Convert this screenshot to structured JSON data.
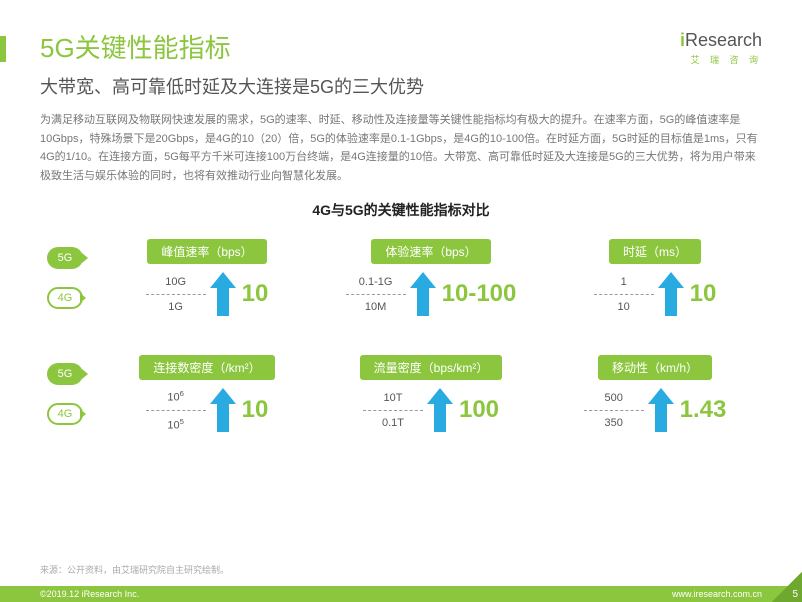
{
  "brand": {
    "name_i": "i",
    "name_rest": "Research",
    "sub": "艾 瑞 咨 询"
  },
  "title": "5G关键性能指标",
  "subtitle": "大带宽、高可靠低时延及大连接是5G的三大优势",
  "body": "为满足移动互联网及物联网快速发展的需求，5G的速率、时延、移动性及连接量等关键性能指标均有极大的提升。在速率方面，5G的峰值速率是10Gbps，特殊场景下是20Gbps，是4G的10（20）倍，5G的体验速率是0.1-1Gbps，是4G的10-100倍。在时延方面，5G时延的目标值是1ms，只有4G的1/10。在连接方面，5G每平方千米可连接100万台终端，是4G连接量的10倍。大带宽、高可靠低时延及大连接是5G的三大优势，将为用户带来极致生活与娱乐体验的同时，也将有效推动行业向智慧化发展。",
  "chart_title": "4G与5G的关键性能指标对比",
  "labels": {
    "g5": "5G",
    "g4": "4G"
  },
  "colors": {
    "accent": "#8cc63f",
    "arrow": "#29abe2",
    "text_muted": "#777"
  },
  "arrow_svg": {
    "width": 26,
    "height": 44
  },
  "metrics": [
    {
      "header": "峰值速率（bps）",
      "v5": "10G",
      "v4": "1G",
      "mult": "10"
    },
    {
      "header": "体验速率（bps）",
      "v5": "0.1-1G",
      "v4": "10M",
      "mult": "10-100"
    },
    {
      "header": "时延（ms）",
      "v5": "1",
      "v4": "10",
      "mult": "10"
    },
    {
      "header": "连接数密度（/km²）",
      "v5_html": "10<sup>6</sup>",
      "v4_html": "10<sup>5</sup>",
      "mult": "10"
    },
    {
      "header": "流量密度（bps/km²）",
      "v5": "10T",
      "v4": "0.1T",
      "mult": "100"
    },
    {
      "header": "移动性（km/h）",
      "v5": "500",
      "v4": "350",
      "mult": "1.43"
    }
  ],
  "source": "来源：公开资料，由艾瑞研究院自主研究绘制。",
  "footer": {
    "copyright": "©2019.12 iResearch Inc.",
    "url": "www.iresearch.com.cn",
    "page": "5"
  }
}
